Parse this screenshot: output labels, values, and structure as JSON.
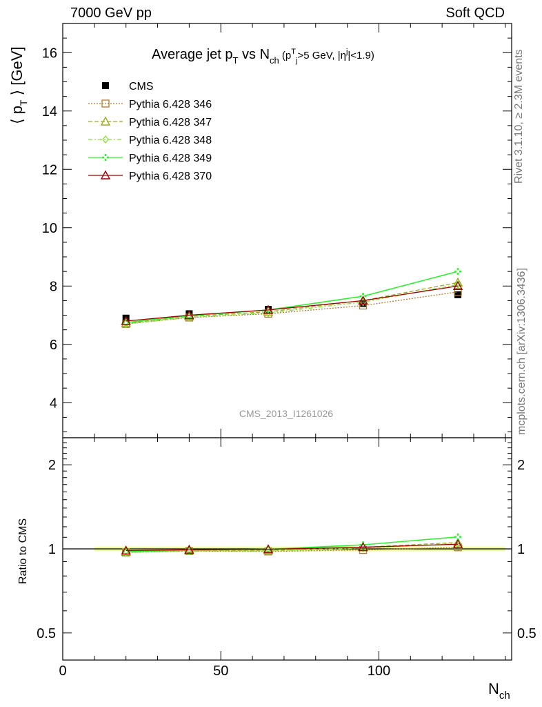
{
  "header": {
    "left": "7000 GeV pp",
    "right": "Soft QCD"
  },
  "side_labels": {
    "rivet": "Rivet 3.1.10, ≥ 2.3M events",
    "mcplots": "mcplots.cern.ch [arXiv:1306.3436]"
  },
  "main_plot": {
    "title": "Average jet pT vs Nch (pTj>5 GeV, |ηj|<1.9)",
    "ylabel": "⟨ pT ⟩ [GeV]",
    "watermark": "CMS_2013_I1261026"
  },
  "ratio_plot": {
    "ylabel": "Ratio to CMS"
  },
  "xlabel": "Nch",
  "colors": {
    "cms": "#000000",
    "p346": "#b07830",
    "p347": "#99aa22",
    "p348": "#88dd33",
    "p349": "#33ee33",
    "p370": "#990000",
    "band": "#eeff99"
  },
  "chart_data": [
    {
      "type": "scatter",
      "title": "Average jet pT vs Nch (pTj>5 GeV, |ηj|<1.9)",
      "xlabel": "Nch",
      "ylabel": "⟨ pT ⟩ [GeV]",
      "xlim": [
        0,
        142
      ],
      "ylim": [
        2.8,
        17
      ],
      "xticks": [
        0,
        50,
        100
      ],
      "yticks": [
        4,
        6,
        8,
        10,
        12,
        14,
        16
      ],
      "legend": "top-left",
      "series": [
        {
          "name": "CMS",
          "key": "cms",
          "marker": "square",
          "x": [
            20,
            40,
            65,
            95,
            125
          ],
          "y": [
            6.9,
            7.05,
            7.2,
            7.4,
            7.7
          ]
        },
        {
          "name": "Pythia 6.428 346",
          "key": "p346",
          "marker": "open-square",
          "x": [
            20,
            40,
            65,
            95,
            125
          ],
          "y": [
            6.7,
            6.92,
            7.05,
            7.33,
            7.8
          ]
        },
        {
          "name": "Pythia 6.428 347",
          "key": "p347",
          "marker": "open-triangle",
          "x": [
            20,
            40,
            65,
            95,
            125
          ],
          "y": [
            6.73,
            6.96,
            7.12,
            7.5,
            8.12
          ]
        },
        {
          "name": "Pythia 6.428 348",
          "key": "p348",
          "marker": "diamond",
          "x": [
            20,
            40,
            65,
            95,
            125
          ],
          "y": [
            6.7,
            6.92,
            7.08,
            7.45,
            8.05
          ]
        },
        {
          "name": "Pythia 6.428 349",
          "key": "p349",
          "marker": "cross",
          "x": [
            20,
            40,
            65,
            95,
            125
          ],
          "y": [
            6.75,
            6.98,
            7.18,
            7.65,
            8.5
          ]
        },
        {
          "name": "Pythia 6.428 370",
          "key": "p370",
          "marker": "open-triangle",
          "x": [
            20,
            40,
            65,
            95,
            125
          ],
          "y": [
            6.8,
            7.0,
            7.18,
            7.5,
            8.0
          ]
        }
      ]
    },
    {
      "type": "line",
      "ylabel": "Ratio to CMS",
      "xlabel": "Nch",
      "xlim": [
        0,
        142
      ],
      "ylim": [
        0.4,
        2.5
      ],
      "yscale": "log",
      "xticks": [
        0,
        50,
        100
      ],
      "yticks": [
        0.5,
        1,
        2
      ],
      "ytick_labels": [
        "0.5",
        "1",
        "2"
      ],
      "series": [
        {
          "name": "Pythia 6.428 346",
          "key": "p346",
          "marker": "open-square",
          "x": [
            20,
            40,
            65,
            95,
            125
          ],
          "y": [
            0.971,
            0.982,
            0.979,
            0.991,
            1.013
          ]
        },
        {
          "name": "Pythia 6.428 347",
          "key": "p347",
          "marker": "open-triangle",
          "x": [
            20,
            40,
            65,
            95,
            125
          ],
          "y": [
            0.975,
            0.987,
            0.989,
            1.014,
            1.054
          ]
        },
        {
          "name": "Pythia 6.428 348",
          "key": "p348",
          "marker": "diamond",
          "x": [
            20,
            40,
            65,
            95,
            125
          ],
          "y": [
            0.971,
            0.982,
            0.983,
            1.007,
            1.045
          ]
        },
        {
          "name": "Pythia 6.428 349",
          "key": "p349",
          "marker": "cross",
          "x": [
            20,
            40,
            65,
            95,
            125
          ],
          "y": [
            0.978,
            0.99,
            0.997,
            1.034,
            1.104
          ]
        },
        {
          "name": "Pythia 6.428 370",
          "key": "p370",
          "marker": "open-triangle",
          "x": [
            20,
            40,
            65,
            95,
            125
          ],
          "y": [
            0.986,
            0.993,
            0.997,
            1.014,
            1.039
          ]
        }
      ]
    }
  ]
}
